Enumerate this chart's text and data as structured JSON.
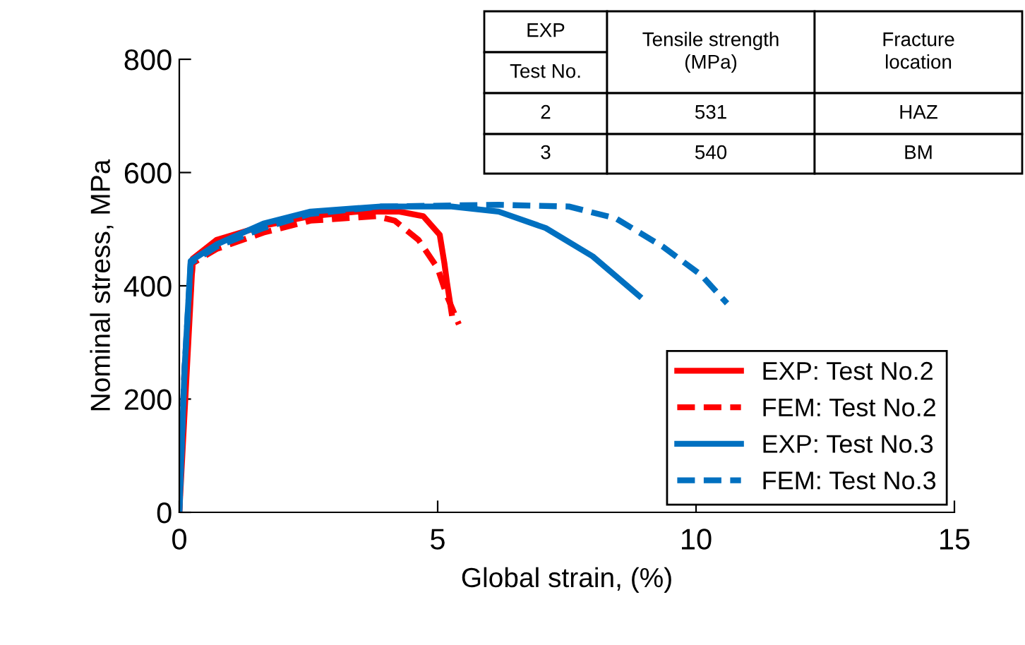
{
  "chart_data": {
    "type": "line",
    "xlabel": "Global strain, (%)",
    "ylabel": "Nominal stress, MPa",
    "xlim": [
      0,
      15
    ],
    "xticks": [
      0,
      5,
      10,
      15
    ],
    "ylim": [
      0,
      800
    ],
    "yticks": [
      0,
      200,
      400,
      600,
      800
    ],
    "grid": false,
    "legend": "bottom right",
    "series": [
      {
        "name": "EXP: Test No.2",
        "color": "#ff0000",
        "line_style": "solid",
        "x": [
          0,
          0.26,
          0.72,
          1.63,
          2.54,
          3.45,
          4.26,
          4.72,
          5.04,
          5.13,
          5.18,
          5.27
        ],
        "values": [
          0,
          448,
          481,
          506,
          523,
          531,
          531,
          523,
          490,
          440,
          406,
          352
        ]
      },
      {
        "name": "FEM: Test No.2",
        "color": "#ff0000",
        "line_style": "dashed",
        "x": [
          0,
          0.1,
          0.26,
          0.72,
          1.63,
          2.54,
          3.81,
          4.17,
          4.63,
          5.0,
          5.18,
          5.41
        ],
        "values": [
          0,
          250,
          440,
          465,
          494,
          515,
          523,
          515,
          481,
          431,
          382,
          332
        ]
      },
      {
        "name": "EXP: Test No.3",
        "color": "#0070c0",
        "line_style": "solid",
        "x": [
          0,
          0.1,
          0.22,
          0.72,
          1.63,
          2.54,
          3.9,
          5.27,
          6.18,
          7.09,
          8.0,
          8.9
        ],
        "values": [
          0,
          250,
          444,
          473,
          510,
          531,
          540,
          540,
          531,
          502,
          452,
          382
        ]
      },
      {
        "name": "FEM: Test No.3",
        "color": "#0070c0",
        "line_style": "dashed",
        "x": [
          0,
          0.1,
          0.22,
          0.72,
          1.63,
          2.54,
          3.9,
          6.18,
          7.54,
          8.45,
          9.36,
          10.1,
          10.6
        ],
        "values": [
          0,
          250,
          440,
          469,
          502,
          527,
          540,
          543,
          540,
          519,
          469,
          419,
          369
        ]
      }
    ],
    "annotations": [
      "EXP",
      "Test No.",
      "Tensile strength\n(MPa)",
      "Fracture\nlocation",
      "2",
      "531",
      "HAZ",
      "3",
      "540",
      "BM"
    ]
  }
}
